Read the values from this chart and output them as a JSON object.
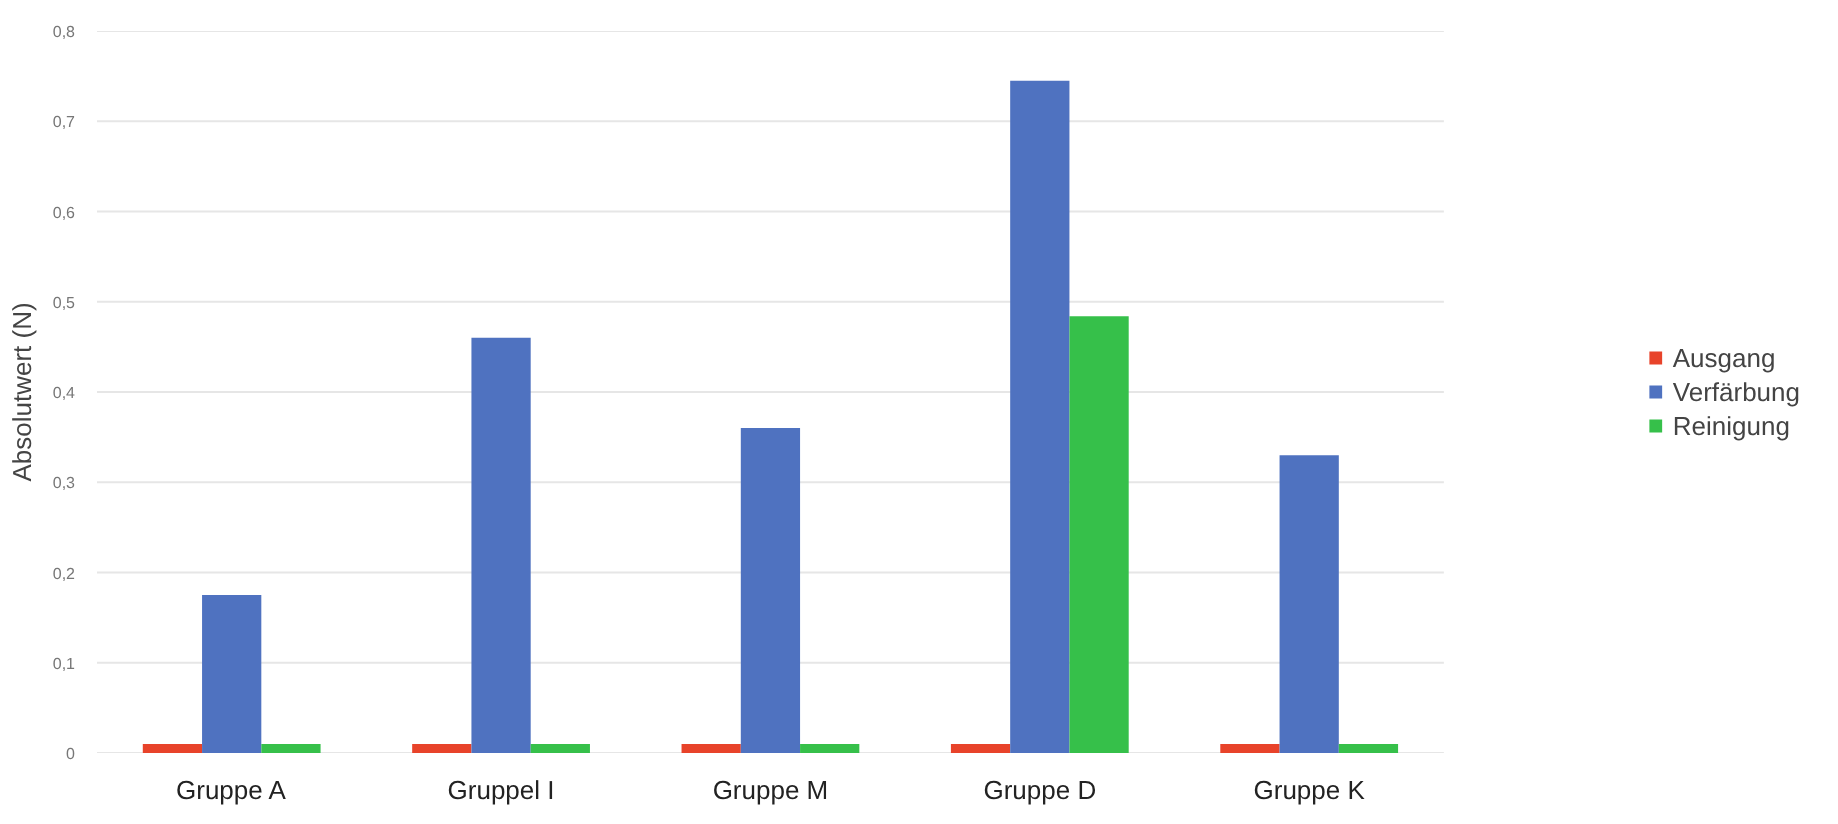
{
  "chart_data": {
    "type": "bar",
    "ylabel": "Absolutwert (N)",
    "categories": [
      "Gruppe A",
      "Gruppel I",
      "Gruppe M",
      "Gruppe D",
      "Gruppe K"
    ],
    "series": [
      {
        "name": "Ausgang",
        "color": "#e8432a",
        "values": [
          0.01,
          0.01,
          0.01,
          0.01,
          0.01
        ]
      },
      {
        "name": "Verfärbung",
        "color": "#4f72c0",
        "values": [
          0.175,
          0.46,
          0.36,
          0.745,
          0.33
        ]
      },
      {
        "name": "Reinigung",
        "color": "#36c04a",
        "values": [
          0.01,
          0.01,
          0.01,
          0.484,
          0.01
        ]
      }
    ],
    "ylim": [
      0,
      0.8
    ],
    "yticks": [
      {
        "value": 0,
        "label": "0"
      },
      {
        "value": 0.1,
        "label": "0,1"
      },
      {
        "value": 0.2,
        "label": "0,2"
      },
      {
        "value": 0.3,
        "label": "0,3"
      },
      {
        "value": 0.4,
        "label": "0,4"
      },
      {
        "value": 0.5,
        "label": "0,5"
      },
      {
        "value": 0.6,
        "label": "0,6"
      },
      {
        "value": 0.7,
        "label": "0,7"
      },
      {
        "value": 0.8,
        "label": "0,8"
      }
    ],
    "grid": "y",
    "legend": "right"
  }
}
